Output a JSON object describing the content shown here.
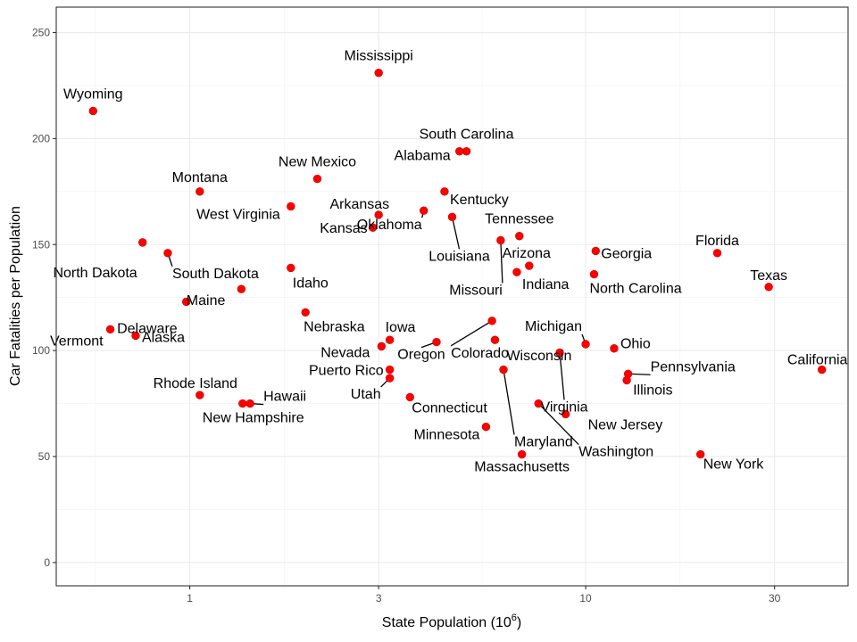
{
  "chart_data": {
    "type": "scatter",
    "xlabel": "State Population (10",
    "xlabel_sup": "6",
    "xlabel_end": ")",
    "ylabel": "Car Fatalities per Population",
    "x_scale": "log",
    "xlim": [
      0.46,
      46
    ],
    "ylim": [
      -11,
      262
    ],
    "x_ticks": [
      1,
      3,
      10,
      30
    ],
    "y_ticks": [
      0,
      50,
      100,
      150,
      200,
      250
    ],
    "grid": true,
    "point_color": "#ff0000",
    "points": [
      {
        "name": "Mississippi",
        "x": 3.0,
        "y": 231
      },
      {
        "name": "Wyoming",
        "x": 0.57,
        "y": 213
      },
      {
        "name": "South Carolina",
        "x": 5.0,
        "y": 194
      },
      {
        "name": "Alabama",
        "x": 4.8,
        "y": 194
      },
      {
        "name": "New Mexico",
        "x": 2.1,
        "y": 181
      },
      {
        "name": "Montana",
        "x": 1.06,
        "y": 175
      },
      {
        "name": "Kentucky",
        "x": 4.4,
        "y": 175
      },
      {
        "name": "West Virginia",
        "x": 1.8,
        "y": 168
      },
      {
        "name": "Arkansas",
        "x": 3.0,
        "y": 164
      },
      {
        "name": "Oklahoma",
        "x": 3.9,
        "y": 166
      },
      {
        "name": "Louisiana",
        "x": 4.6,
        "y": 163
      },
      {
        "name": "Kansas",
        "x": 2.9,
        "y": 158
      },
      {
        "name": "Tennessee",
        "x": 6.8,
        "y": 154
      },
      {
        "name": "Missouri",
        "x": 6.1,
        "y": 152
      },
      {
        "name": "North Dakota",
        "x": 0.76,
        "y": 151
      },
      {
        "name": "Georgia",
        "x": 10.6,
        "y": 147
      },
      {
        "name": "Florida",
        "x": 21.5,
        "y": 146
      },
      {
        "name": "South Dakota",
        "x": 0.88,
        "y": 146
      },
      {
        "name": "Arizona",
        "x": 7.2,
        "y": 140
      },
      {
        "name": "Idaho",
        "x": 1.8,
        "y": 139
      },
      {
        "name": "Indiana",
        "x": 6.7,
        "y": 137
      },
      {
        "name": "North Carolina",
        "x": 10.5,
        "y": 136
      },
      {
        "name": "Texas",
        "x": 29.0,
        "y": 130
      },
      {
        "name": "Maine",
        "x": 1.35,
        "y": 129
      },
      {
        "name": "Delaware",
        "x": 0.98,
        "y": 123
      },
      {
        "name": "Nebraska",
        "x": 1.96,
        "y": 118
      },
      {
        "name": "Colorado",
        "x": 5.8,
        "y": 114
      },
      {
        "name": "Vermont",
        "x": 0.63,
        "y": 110
      },
      {
        "name": "Alaska",
        "x": 0.73,
        "y": 107
      },
      {
        "name": "Iowa",
        "x": 3.2,
        "y": 105
      },
      {
        "name": "Nevada",
        "x": 3.05,
        "y": 102
      },
      {
        "name": "Oregon",
        "x": 4.2,
        "y": 104
      },
      {
        "name": "Michigan",
        "x": 10.0,
        "y": 103
      },
      {
        "name": "Ohio",
        "x": 11.8,
        "y": 101
      },
      {
        "name": "Virginia",
        "x": 8.6,
        "y": 99
      },
      {
        "name": "Wisconsin",
        "x": 5.9,
        "y": 105
      },
      {
        "name": "California",
        "x": 39.5,
        "y": 91
      },
      {
        "name": "Puerto Rico",
        "x": 3.2,
        "y": 91
      },
      {
        "name": "Pennsylvania",
        "x": 12.8,
        "y": 89
      },
      {
        "name": "Utah",
        "x": 3.2,
        "y": 87
      },
      {
        "name": "Illinois",
        "x": 12.7,
        "y": 86
      },
      {
        "name": "Maryland",
        "x": 6.2,
        "y": 91
      },
      {
        "name": "Rhode Island",
        "x": 1.06,
        "y": 79
      },
      {
        "name": "Connecticut",
        "x": 3.6,
        "y": 78
      },
      {
        "name": "Hawaii",
        "x": 1.42,
        "y": 75
      },
      {
        "name": "New Hampshire",
        "x": 1.36,
        "y": 75
      },
      {
        "name": "Washington",
        "x": 7.6,
        "y": 75
      },
      {
        "name": "New Jersey",
        "x": 8.9,
        "y": 70
      },
      {
        "name": "Minnesota",
        "x": 5.6,
        "y": 64
      },
      {
        "name": "New York",
        "x": 19.5,
        "y": 51
      },
      {
        "name": "Massachusetts",
        "x": 6.9,
        "y": 51
      }
    ]
  }
}
